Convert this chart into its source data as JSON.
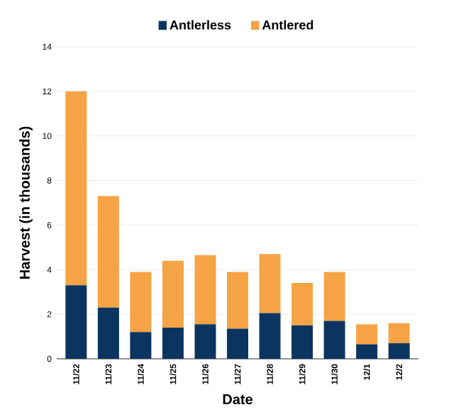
{
  "chart_data": {
    "type": "bar",
    "stacked": true,
    "xlabel": "Date",
    "ylabel": "Harvest (in thousands)",
    "categories": [
      "11/22",
      "11/23",
      "11/24",
      "11/25",
      "11/26",
      "11/27",
      "11/28",
      "11/29",
      "11/30",
      "12/1",
      "12/2"
    ],
    "series": [
      {
        "name": "Antlerless",
        "color": "#0b3560",
        "values": [
          3.3,
          2.3,
          1.2,
          1.4,
          1.55,
          1.35,
          2.05,
          1.5,
          1.7,
          0.65,
          0.7
        ]
      },
      {
        "name": "Antlered",
        "color": "#f5a345",
        "values": [
          8.7,
          5.0,
          2.7,
          3.0,
          3.1,
          2.55,
          2.65,
          1.9,
          2.2,
          0.9,
          0.9
        ]
      }
    ],
    "ylim": [
      0,
      14
    ],
    "yticks": [
      0,
      2,
      4,
      6,
      8,
      10,
      12,
      14
    ],
    "grid": "y",
    "legend": "top"
  }
}
